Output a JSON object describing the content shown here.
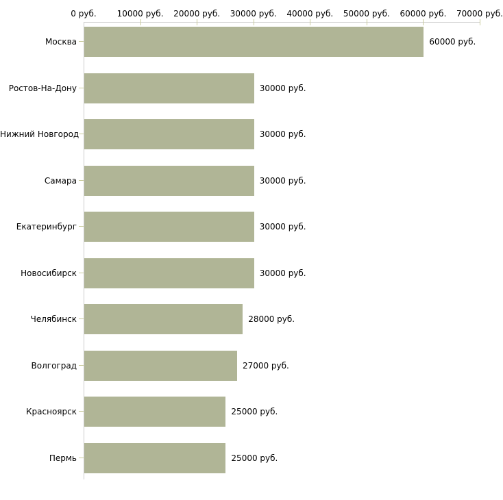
{
  "chart_data": {
    "type": "bar",
    "orientation": "horizontal",
    "title": "",
    "unit": "руб.",
    "categories": [
      "Москва",
      "Ростов-На-Дону",
      "Нижний Новгород",
      "Самара",
      "Екатеринбург",
      "Новосибирск",
      "Челябинск",
      "Волгоград",
      "Красноярск",
      "Пермь"
    ],
    "values": [
      60000,
      30000,
      30000,
      30000,
      30000,
      30000,
      28000,
      27000,
      25000,
      25000
    ],
    "bar_labels": [
      "60000 руб.",
      "30000 руб.",
      "30000 руб.",
      "30000 руб.",
      "30000 руб.",
      "30000 руб.",
      "28000 руб.",
      "27000 руб.",
      "25000 руб.",
      "25000 руб."
    ],
    "x_axis": {
      "position": "top",
      "min": 0,
      "max": 70000,
      "tick_step": 10000,
      "tick_values": [
        0,
        10000,
        20000,
        30000,
        40000,
        50000,
        60000,
        70000
      ],
      "tick_labels": [
        "0 руб.",
        "10000 руб.",
        "20000 руб.",
        "30000 руб.",
        "40000 руб.",
        "50000 руб.",
        "60000 руб.",
        "70000 руб."
      ]
    },
    "grid": false,
    "legend": false,
    "colors": {
      "bar": "#b0b596",
      "axis_line": "#cccccc",
      "tick_mark": "#c9cb9c",
      "text": "#000000",
      "background": "#ffffff"
    }
  }
}
